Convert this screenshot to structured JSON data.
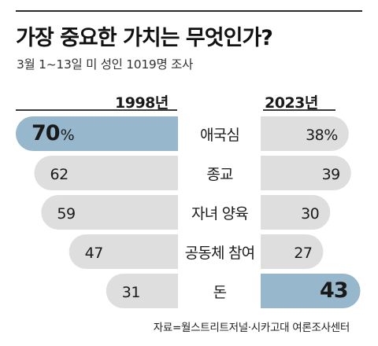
{
  "title": "가장 중요한 가치는 무엇인가?",
  "subtitle": "3월 1~13일 미 성인 1019명 조사",
  "source": "자료=월스트리트저널·시카고대 여론조사센터",
  "colors": {
    "bar_default": "#dedede",
    "bar_highlight": "#97b7cc",
    "text_dark": "#1a1a1a"
  },
  "chart_data": {
    "type": "bar",
    "orientation": "horizontal-butterfly",
    "title": "가장 중요한 가치는 무엇인가?",
    "categories": [
      "애국심",
      "종교",
      "자녀 양육",
      "공동체 참여",
      "돈"
    ],
    "series": [
      {
        "name": "1998년",
        "values": [
          70,
          62,
          59,
          47,
          31
        ],
        "labels": [
          "70",
          "62",
          "59",
          "47",
          "31"
        ],
        "highlight": [
          true,
          false,
          false,
          false,
          false
        ]
      },
      {
        "name": "2023년",
        "values": [
          38,
          39,
          30,
          27,
          43
        ],
        "labels": [
          "38%",
          "39",
          "30",
          "27",
          "43"
        ],
        "highlight": [
          false,
          false,
          false,
          false,
          true
        ]
      }
    ],
    "first_label_suffix": "%",
    "unit": "%",
    "xlim": [
      0,
      70
    ]
  }
}
